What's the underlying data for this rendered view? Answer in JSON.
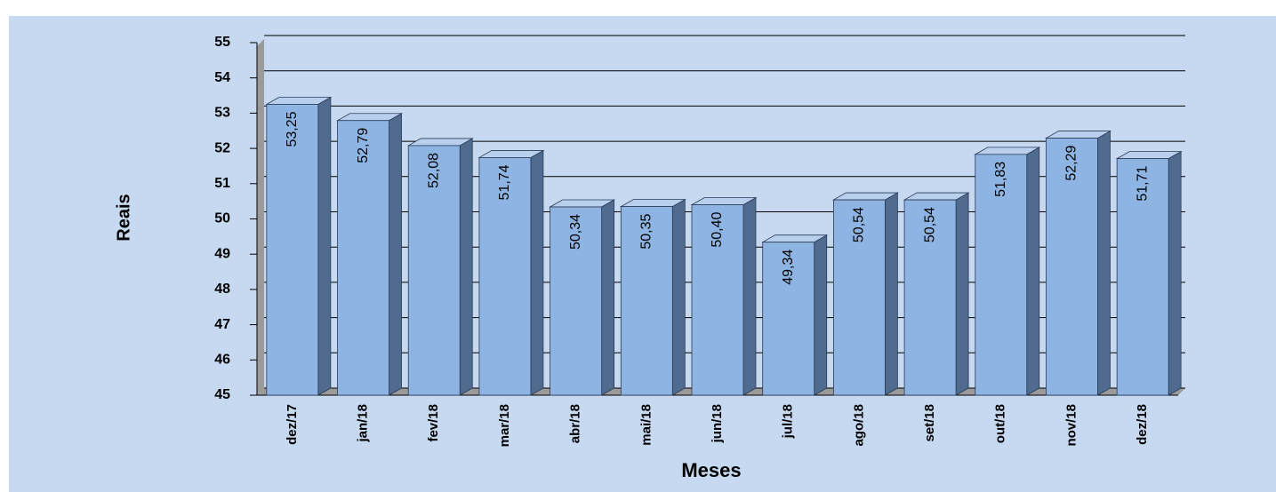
{
  "chart_data": {
    "type": "bar",
    "categories": [
      "dez/17",
      "jan/18",
      "fev/18",
      "mar/18",
      "abr/18",
      "mai/18",
      "jun/18",
      "jul/18",
      "ago/18",
      "set/18",
      "out/18",
      "nov/18",
      "dez/18"
    ],
    "values": [
      53.25,
      52.79,
      52.08,
      51.74,
      50.34,
      50.35,
      50.4,
      49.34,
      50.54,
      50.54,
      51.83,
      52.29,
      51.71
    ],
    "value_labels": [
      "53,25",
      "52,79",
      "52,08",
      "51,74",
      "50,34",
      "50,35",
      "50,40",
      "49,34",
      "50,54",
      "50,54",
      "51,83",
      "52,29",
      "51,71"
    ],
    "color": "#8db4e2",
    "ylabel": "Reais",
    "xlabel": "Meses",
    "ylim": [
      45,
      55
    ],
    "yticks": [
      45,
      46,
      47,
      48,
      49,
      50,
      51,
      52,
      53,
      54,
      55
    ],
    "grid": true
  }
}
